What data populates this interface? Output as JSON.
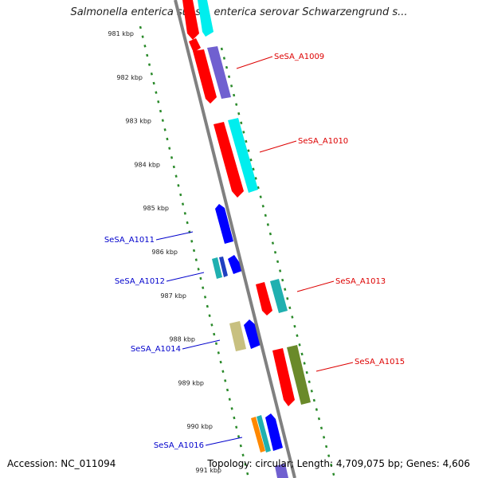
{
  "title": "Salmonella enterica subsp. enterica serovar Schwarzengrund s...",
  "footer": {
    "accession": "Accession: NC_011094",
    "summary": "Topology: circular; Length: 4,709,075 bp; Genes: 4,606"
  },
  "colors": {
    "backbone": "#808080",
    "tick": "#2a8a2a",
    "forward_label": "#dd0000",
    "reverse_label": "#0000cc",
    "red": "#ff0000",
    "cyan": "#00eeee",
    "purple": "#7060d0",
    "blue": "#0000ff",
    "teal": "#20b0b0",
    "khaki": "#c8c080",
    "olive": "#6a8a2a",
    "orange": "#ff8800"
  },
  "ticks": [
    "981 kbp",
    "982 kbp",
    "983 kbp",
    "984 kbp",
    "985 kbp",
    "986 kbp",
    "987 kbp",
    "988 kbp",
    "989 kbp",
    "990 kbp",
    "991 kbp"
  ],
  "gene_labels": [
    {
      "id": "SeSA_A1009",
      "strand": "forward"
    },
    {
      "id": "SeSA_A1010",
      "strand": "forward"
    },
    {
      "id": "SeSA_A1011",
      "strand": "reverse"
    },
    {
      "id": "SeSA_A1012",
      "strand": "reverse"
    },
    {
      "id": "SeSA_A1013",
      "strand": "forward"
    },
    {
      "id": "SeSA_A1014",
      "strand": "reverse"
    },
    {
      "id": "SeSA_A1015",
      "strand": "forward"
    },
    {
      "id": "SeSA_A1016",
      "strand": "reverse"
    }
  ]
}
